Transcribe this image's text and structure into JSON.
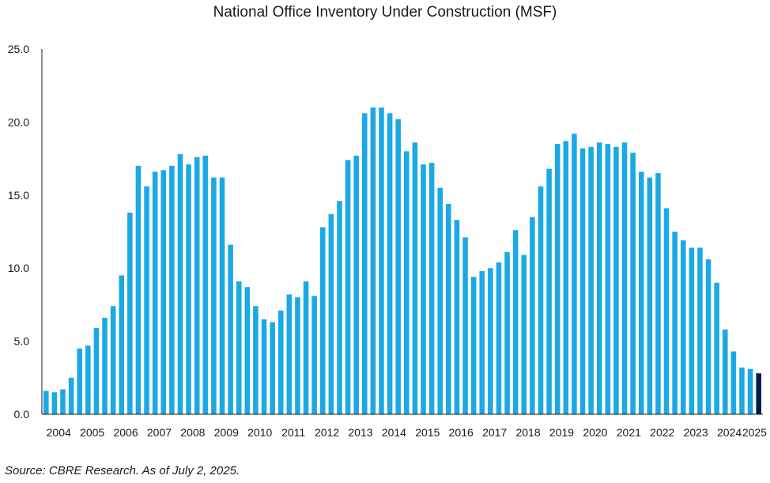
{
  "colors": {
    "bar": "#1ba9e6",
    "highlight": "#031a4f",
    "axis": "#1a1a1a",
    "text": "#1a1a1a"
  },
  "source": "Source: CBRE Research. As of July 2, 2025.",
  "chart_data": {
    "type": "bar",
    "title": "National Office Inventory Under Construction (MSF)",
    "xlabel": "",
    "ylabel": "",
    "ylim": [
      0,
      25
    ],
    "yticks": [
      "0.0",
      "5.0",
      "10.0",
      "15.0",
      "20.0",
      "25.0"
    ],
    "ytick_values": [
      0,
      5,
      10,
      15,
      20,
      25
    ],
    "grid": false,
    "legend": "none",
    "year_labels": [
      "2004",
      "2005",
      "2006",
      "2007",
      "2008",
      "2009",
      "2010",
      "2011",
      "2012",
      "2013",
      "2014",
      "2015",
      "2016",
      "2017",
      "2018",
      "2019",
      "2020",
      "2021",
      "2022",
      "2023",
      "2024",
      "2025"
    ],
    "categories": [
      "2004 Q1",
      "2004 Q2",
      "2004 Q3",
      "2004 Q4",
      "2005 Q1",
      "2005 Q2",
      "2005 Q3",
      "2005 Q4",
      "2006 Q1",
      "2006 Q2",
      "2006 Q3",
      "2006 Q4",
      "2007 Q1",
      "2007 Q2",
      "2007 Q3",
      "2007 Q4",
      "2008 Q1",
      "2008 Q2",
      "2008 Q3",
      "2008 Q4",
      "2009 Q1",
      "2009 Q2",
      "2009 Q3",
      "2009 Q4",
      "2010 Q1",
      "2010 Q2",
      "2010 Q3",
      "2010 Q4",
      "2011 Q1",
      "2011 Q2",
      "2011 Q3",
      "2011 Q4",
      "2012 Q1",
      "2012 Q2",
      "2012 Q3",
      "2012 Q4",
      "2013 Q1",
      "2013 Q2",
      "2013 Q3",
      "2013 Q4",
      "2014 Q1",
      "2014 Q2",
      "2014 Q3",
      "2014 Q4",
      "2015 Q1",
      "2015 Q2",
      "2015 Q3",
      "2015 Q4",
      "2016 Q1",
      "2016 Q2",
      "2016 Q3",
      "2016 Q4",
      "2017 Q1",
      "2017 Q2",
      "2017 Q3",
      "2017 Q4",
      "2018 Q1",
      "2018 Q2",
      "2018 Q3",
      "2018 Q4",
      "2019 Q1",
      "2019 Q2",
      "2019 Q3",
      "2019 Q4",
      "2020 Q1",
      "2020 Q2",
      "2020 Q3",
      "2020 Q4",
      "2021 Q1",
      "2021 Q2",
      "2021 Q3",
      "2021 Q4",
      "2022 Q1",
      "2022 Q2",
      "2022 Q3",
      "2022 Q4",
      "2023 Q1",
      "2023 Q2",
      "2023 Q3",
      "2023 Q4",
      "2024 Q1",
      "2024 Q2",
      "2024 Q3",
      "2024 Q4",
      "2025 Q1",
      "2025 Q2"
    ],
    "values": [
      1.6,
      1.5,
      1.7,
      2.5,
      4.5,
      4.7,
      5.9,
      6.6,
      7.4,
      9.5,
      13.8,
      17.0,
      15.6,
      16.6,
      16.7,
      17.0,
      17.8,
      17.1,
      17.6,
      17.7,
      16.2,
      16.2,
      11.6,
      9.1,
      8.7,
      7.4,
      6.5,
      6.3,
      7.1,
      8.2,
      8.0,
      9.1,
      8.1,
      12.8,
      13.7,
      14.6,
      17.4,
      17.7,
      20.6,
      21.0,
      21.0,
      20.6,
      20.2,
      18.0,
      18.6,
      17.1,
      17.2,
      15.5,
      14.4,
      13.3,
      12.1,
      9.4,
      9.8,
      10.0,
      10.4,
      11.1,
      12.6,
      10.9,
      13.5,
      15.6,
      16.8,
      18.5,
      18.7,
      19.2,
      18.2,
      18.3,
      18.6,
      18.5,
      18.3,
      18.6,
      17.9,
      16.6,
      16.2,
      16.5,
      14.1,
      12.5,
      11.9,
      11.4,
      11.4,
      10.6,
      9.0,
      5.8,
      4.3,
      3.2,
      3.1,
      2.8
    ],
    "highlight_index": 85
  }
}
